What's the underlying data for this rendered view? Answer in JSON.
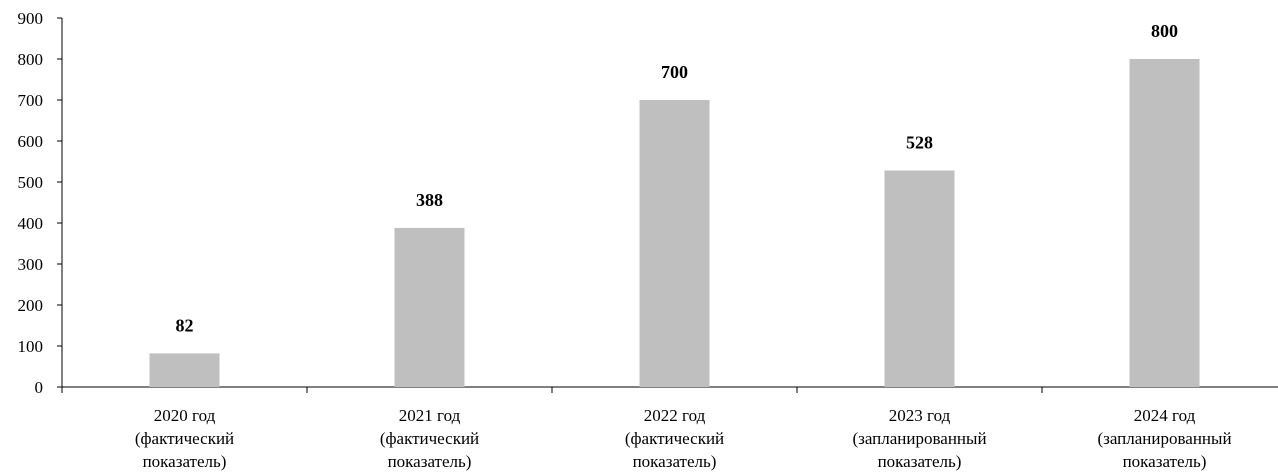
{
  "chart_data": {
    "type": "bar",
    "title": "",
    "xlabel": "",
    "ylabel": "",
    "ylim": [
      0,
      900
    ],
    "yticks": [
      0,
      100,
      200,
      300,
      400,
      500,
      600,
      700,
      800,
      900
    ],
    "grid": false,
    "legend": "none",
    "bar_color": "#bfbfbf",
    "categories": [
      [
        "2020 год",
        "(фактический",
        "показатель)"
      ],
      [
        "2021 год",
        "(фактический",
        "показатель)"
      ],
      [
        "2022 год",
        "(фактический",
        "показатель)"
      ],
      [
        "2023 год",
        "(запланированный",
        "показатель)"
      ],
      [
        "2024 год",
        "(запланированный",
        "показатель)"
      ]
    ],
    "values": [
      82,
      388,
      700,
      528,
      800
    ],
    "data_labels": [
      "82",
      "388",
      "700",
      "528",
      "800"
    ]
  }
}
